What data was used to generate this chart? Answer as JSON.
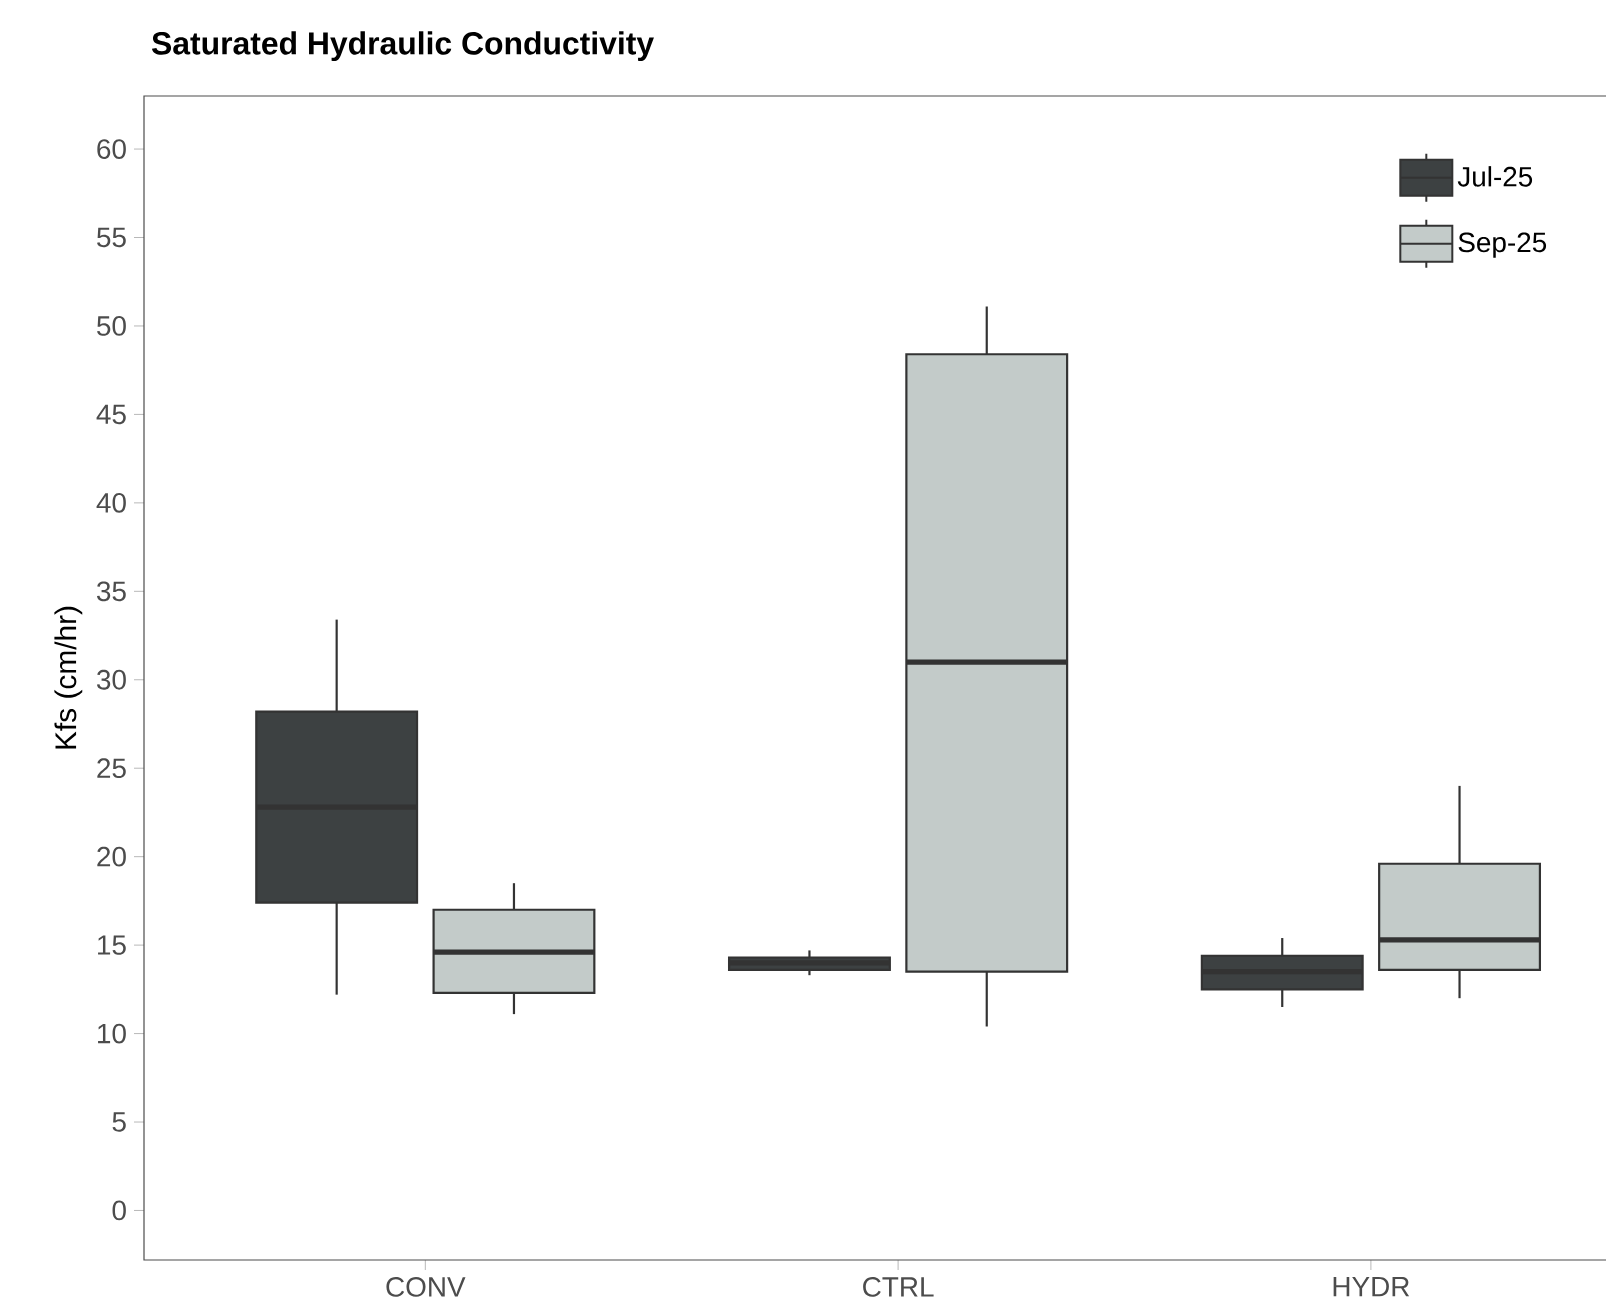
{
  "chart_data": {
    "type": "box",
    "title": "Saturated Hydraulic Conductivity",
    "ylabel": "Kfs (cm/hr)",
    "categories": [
      "CONV",
      "CTRL",
      "HYDR"
    ],
    "series": [
      {
        "name": "Jul-25",
        "color": "#3d4142",
        "boxes": [
          {
            "low": 12.2,
            "q1": 17.4,
            "median": 22.8,
            "q3": 28.2,
            "high": 33.4
          },
          {
            "low": 13.3,
            "q1": 13.6,
            "median": 14.0,
            "q3": 14.3,
            "high": 14.7
          },
          {
            "low": 11.5,
            "q1": 12.5,
            "median": 13.5,
            "q3": 14.4,
            "high": 15.4
          }
        ]
      },
      {
        "name": "Sep-25",
        "color": "#c3cbc9",
        "boxes": [
          {
            "low": 11.1,
            "q1": 12.3,
            "median": 14.6,
            "q3": 17.0,
            "high": 18.5
          },
          {
            "low": 10.4,
            "q1": 13.5,
            "median": 31.0,
            "q3": 48.4,
            "high": 51.1
          },
          {
            "low": 12.0,
            "q1": 13.6,
            "median": 15.3,
            "q3": 19.6,
            "high": 24.0
          }
        ]
      }
    ],
    "ylim": [
      -2.8,
      63
    ],
    "yticks": [
      0,
      5,
      10,
      15,
      20,
      25,
      30,
      35,
      40,
      45,
      50,
      55,
      60
    ],
    "legend": "top right",
    "grid": false
  }
}
